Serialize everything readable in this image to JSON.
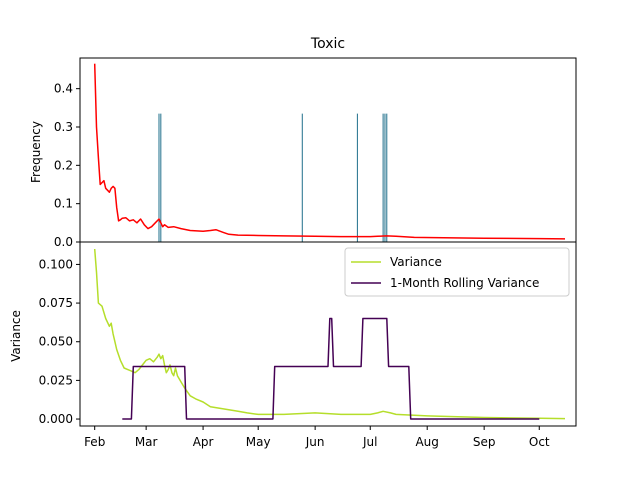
{
  "chart_data": [
    {
      "type": "line",
      "title": "Toxic",
      "xlabel": "",
      "ylabel": "Frequency",
      "ylim": [
        0,
        0.48
      ],
      "yticks": [
        0.0,
        0.1,
        0.2,
        0.3,
        0.4
      ],
      "ytick_labels": [
        "0.0",
        "0.1",
        "0.2",
        "0.3",
        "0.4"
      ],
      "grid": false,
      "series": [
        {
          "color": "#ff0000",
          "x": [
            "2023-02-01",
            "2023-02-02",
            "2023-02-03",
            "2023-02-04",
            "2023-02-05",
            "2023-02-06",
            "2023-02-07",
            "2023-02-08",
            "2023-02-09",
            "2023-02-10",
            "2023-02-11",
            "2023-02-12",
            "2023-02-13",
            "2023-02-14",
            "2023-02-15",
            "2023-02-16",
            "2023-02-18",
            "2023-02-20",
            "2023-02-22",
            "2023-02-24",
            "2023-02-26",
            "2023-02-28",
            "2023-03-02",
            "2023-03-04",
            "2023-03-06",
            "2023-03-08",
            "2023-03-10",
            "2023-03-11",
            "2023-03-13",
            "2023-03-16",
            "2023-03-20",
            "2023-03-25",
            "2023-04-01",
            "2023-04-05",
            "2023-04-08",
            "2023-04-12",
            "2023-04-15",
            "2023-04-20",
            "2023-05-01",
            "2023-05-15",
            "2023-06-01",
            "2023-06-15",
            "2023-07-01",
            "2023-07-05",
            "2023-07-10",
            "2023-07-15",
            "2023-07-25",
            "2023-08-10",
            "2023-09-01",
            "2023-10-01",
            "2023-10-15"
          ],
          "y": [
            0.465,
            0.3,
            0.22,
            0.15,
            0.155,
            0.16,
            0.14,
            0.135,
            0.13,
            0.14,
            0.145,
            0.14,
            0.09,
            0.055,
            0.058,
            0.062,
            0.063,
            0.055,
            0.058,
            0.05,
            0.06,
            0.045,
            0.035,
            0.04,
            0.05,
            0.06,
            0.04,
            0.045,
            0.038,
            0.04,
            0.035,
            0.03,
            0.028,
            0.03,
            0.032,
            0.025,
            0.02,
            0.018,
            0.017,
            0.016,
            0.015,
            0.014,
            0.014,
            0.015,
            0.016,
            0.015,
            0.012,
            0.011,
            0.01,
            0.009,
            0.008
          ]
        }
      ],
      "markers": {
        "color": "#1f6f8b",
        "height": 0.335,
        "x": [
          "2023-03-08",
          "2023-03-09",
          "2023-05-25",
          "2023-06-24",
          "2023-07-08",
          "2023-07-09",
          "2023-07-10"
        ]
      }
    },
    {
      "type": "line",
      "xlabel": "",
      "ylabel": "Variance",
      "ylim": [
        -0.0045,
        0.1145
      ],
      "yticks": [
        0.0,
        0.025,
        0.05,
        0.075,
        0.1
      ],
      "ytick_labels": [
        "0.000",
        "0.025",
        "0.050",
        "0.075",
        "0.100"
      ],
      "xticks": [
        "2023-02-01",
        "2023-03-01",
        "2023-04-01",
        "2023-05-01",
        "2023-06-01",
        "2023-07-01",
        "2023-08-01",
        "2023-09-01",
        "2023-10-01"
      ],
      "xtick_labels": [
        "Feb",
        "Mar",
        "Apr",
        "May",
        "Jun",
        "Jul",
        "Aug",
        "Sep",
        "Oct"
      ],
      "grid": false,
      "legend": {
        "placement": "top-right"
      },
      "series": [
        {
          "name": "Variance",
          "color": "#b5de2b",
          "x": [
            "2023-02-01",
            "2023-02-02",
            "2023-02-03",
            "2023-02-05",
            "2023-02-07",
            "2023-02-09",
            "2023-02-10",
            "2023-02-11",
            "2023-02-12",
            "2023-02-13",
            "2023-02-15",
            "2023-02-17",
            "2023-02-19",
            "2023-02-21",
            "2023-02-23",
            "2023-02-25",
            "2023-02-27",
            "2023-03-01",
            "2023-03-03",
            "2023-03-05",
            "2023-03-07",
            "2023-03-08",
            "2023-03-09",
            "2023-03-10",
            "2023-03-11",
            "2023-03-12",
            "2023-03-13",
            "2023-03-14",
            "2023-03-15",
            "2023-03-16",
            "2023-03-17",
            "2023-03-18",
            "2023-03-20",
            "2023-03-22",
            "2023-03-25",
            "2023-03-28",
            "2023-04-01",
            "2023-04-05",
            "2023-04-10",
            "2023-04-15",
            "2023-04-20",
            "2023-04-25",
            "2023-05-01",
            "2023-05-15",
            "2023-06-01",
            "2023-06-15",
            "2023-07-01",
            "2023-07-05",
            "2023-07-08",
            "2023-07-12",
            "2023-07-15",
            "2023-08-01",
            "2023-09-01",
            "2023-10-01",
            "2023-10-15"
          ],
          "y": [
            0.11,
            0.095,
            0.075,
            0.073,
            0.065,
            0.06,
            0.062,
            0.055,
            0.05,
            0.045,
            0.038,
            0.033,
            0.032,
            0.031,
            0.03,
            0.032,
            0.035,
            0.038,
            0.039,
            0.037,
            0.04,
            0.042,
            0.039,
            0.041,
            0.035,
            0.03,
            0.032,
            0.035,
            0.03,
            0.028,
            0.033,
            0.028,
            0.024,
            0.02,
            0.015,
            0.013,
            0.011,
            0.008,
            0.007,
            0.006,
            0.005,
            0.004,
            0.003,
            0.003,
            0.004,
            0.003,
            0.003,
            0.004,
            0.005,
            0.004,
            0.003,
            0.002,
            0.001,
            0.0005,
            0.0003
          ]
        },
        {
          "name": "1-Month Rolling Variance",
          "color": "#440154",
          "x": [
            "2023-02-16",
            "2023-02-21",
            "2023-02-22",
            "2023-03-22",
            "2023-03-23",
            "2023-05-09",
            "2023-05-10",
            "2023-06-08",
            "2023-06-09",
            "2023-06-10",
            "2023-06-11",
            "2023-06-13",
            "2023-06-14",
            "2023-06-26",
            "2023-06-27",
            "2023-07-10",
            "2023-07-11",
            "2023-07-22",
            "2023-07-23",
            "2023-10-01"
          ],
          "y": [
            0.0,
            0.0,
            0.034,
            0.034,
            0.0,
            0.0,
            0.034,
            0.034,
            0.065,
            0.065,
            0.034,
            0.034,
            0.034,
            0.034,
            0.065,
            0.065,
            0.034,
            0.034,
            0.0,
            0.0
          ]
        }
      ]
    }
  ]
}
